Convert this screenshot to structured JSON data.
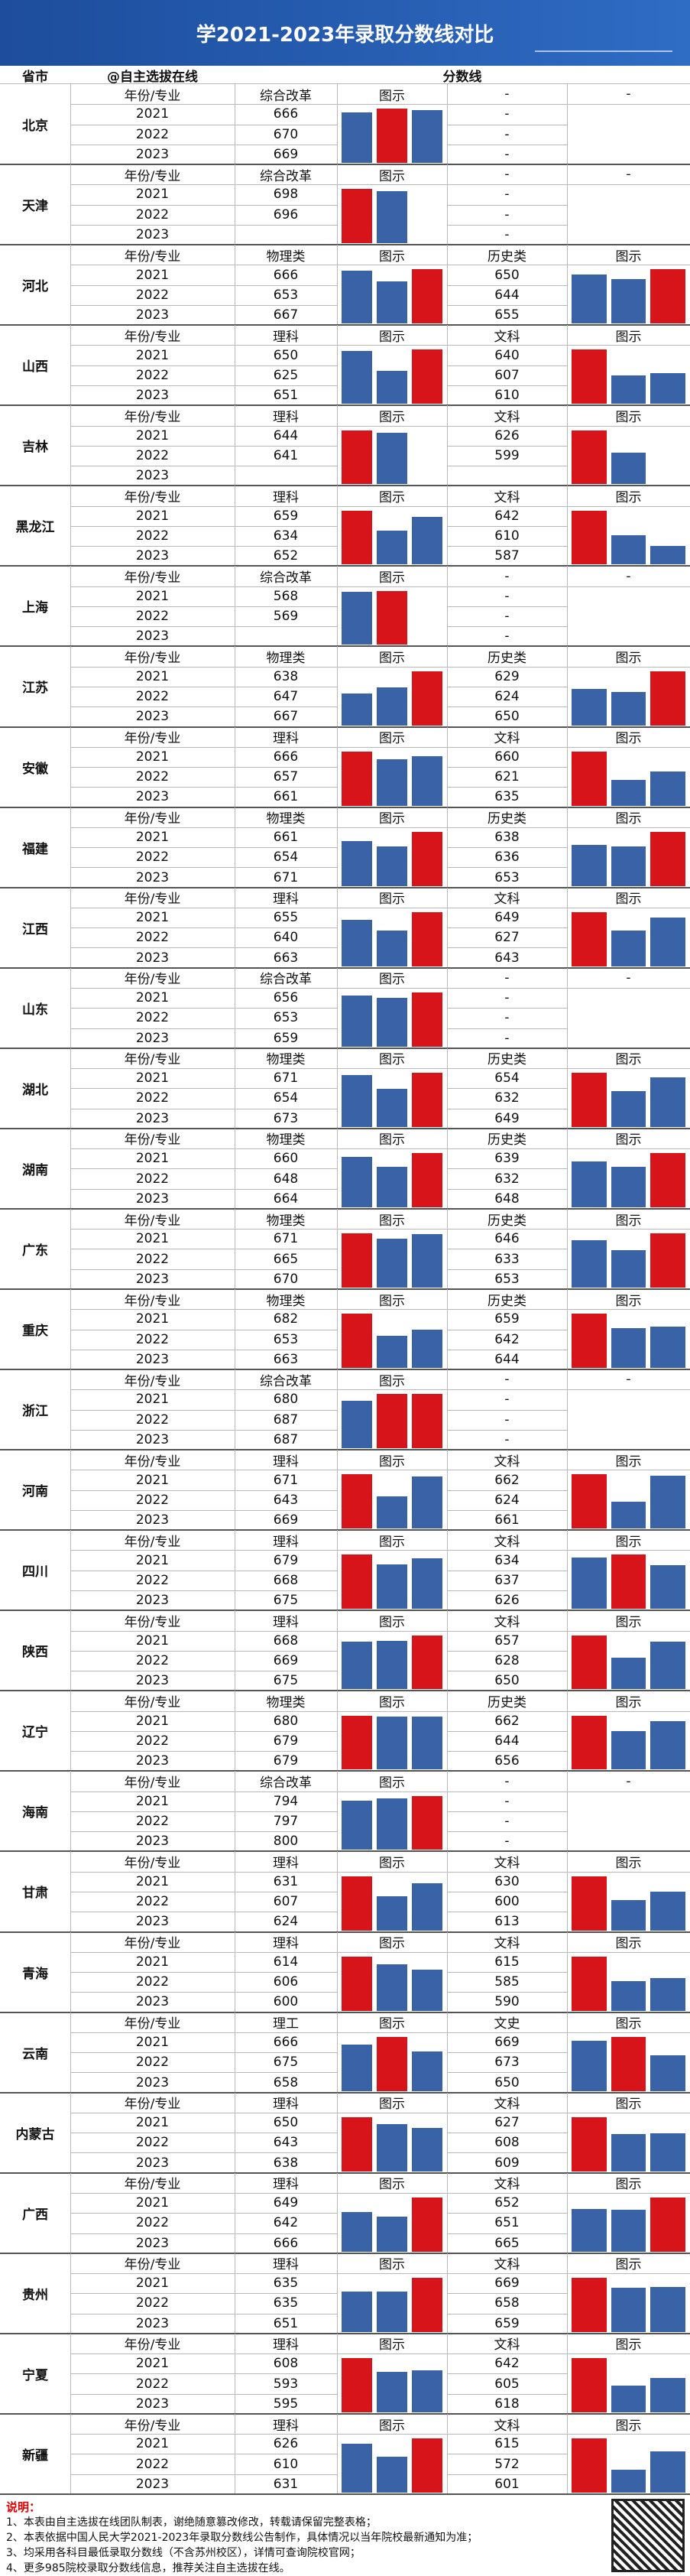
{
  "header": {
    "title": "学2021-2023年录取分数线对比",
    "col_province": "省市",
    "col_source": "@自主选拔在线",
    "col_scores": "分数线"
  },
  "year_header": "年份/专业",
  "years": [
    "2021",
    "2022",
    "2023"
  ],
  "bar_colors": {
    "normal": "#3a62a6",
    "highlight": "#d7141a"
  },
  "provinces": [
    {
      "name": "北京",
      "groups": [
        {
          "subject": "综合改革",
          "chart_label": "图示",
          "scores": [
            666,
            670,
            669
          ]
        },
        {
          "subject": "-",
          "chart_label": "-",
          "scores": [
            "-",
            "-",
            "-"
          ]
        }
      ]
    },
    {
      "name": "天津",
      "groups": [
        {
          "subject": "综合改革",
          "chart_label": "图示",
          "scores": [
            698,
            696,
            null
          ]
        },
        {
          "subject": "-",
          "chart_label": "-",
          "scores": [
            "-",
            "-",
            "-"
          ]
        }
      ]
    },
    {
      "name": "河北",
      "groups": [
        {
          "subject": "物理类",
          "chart_label": "图示",
          "scores": [
            666,
            653,
            667
          ]
        },
        {
          "subject": "历史类",
          "chart_label": "图示",
          "scores": [
            650,
            644,
            655
          ]
        }
      ]
    },
    {
      "name": "山西",
      "groups": [
        {
          "subject": "理科",
          "chart_label": "图示",
          "scores": [
            650,
            625,
            651
          ]
        },
        {
          "subject": "文科",
          "chart_label": "图示",
          "scores": [
            640,
            607,
            610
          ]
        }
      ]
    },
    {
      "name": "吉林",
      "groups": [
        {
          "subject": "理科",
          "chart_label": "图示",
          "scores": [
            644,
            641,
            null
          ]
        },
        {
          "subject": "文科",
          "chart_label": "图示",
          "scores": [
            626,
            599,
            null
          ]
        }
      ]
    },
    {
      "name": "黑龙江",
      "groups": [
        {
          "subject": "理科",
          "chart_label": "图示",
          "scores": [
            659,
            634,
            652
          ]
        },
        {
          "subject": "文科",
          "chart_label": "图示",
          "scores": [
            642,
            610,
            587
          ]
        }
      ]
    },
    {
      "name": "上海",
      "groups": [
        {
          "subject": "综合改革",
          "chart_label": "图示",
          "scores": [
            568,
            569,
            null
          ]
        },
        {
          "subject": "-",
          "chart_label": "-",
          "scores": [
            "-",
            "-",
            "-"
          ]
        }
      ]
    },
    {
      "name": "江苏",
      "groups": [
        {
          "subject": "物理类",
          "chart_label": "图示",
          "scores": [
            638,
            647,
            667
          ]
        },
        {
          "subject": "历史类",
          "chart_label": "图示",
          "scores": [
            629,
            624,
            650
          ]
        }
      ]
    },
    {
      "name": "安徽",
      "groups": [
        {
          "subject": "理科",
          "chart_label": "图示",
          "scores": [
            666,
            657,
            661
          ]
        },
        {
          "subject": "文科",
          "chart_label": "图示",
          "scores": [
            660,
            621,
            635
          ]
        }
      ]
    },
    {
      "name": "福建",
      "groups": [
        {
          "subject": "物理类",
          "chart_label": "图示",
          "scores": [
            661,
            654,
            671
          ]
        },
        {
          "subject": "历史类",
          "chart_label": "图示",
          "scores": [
            638,
            636,
            653
          ]
        }
      ]
    },
    {
      "name": "江西",
      "groups": [
        {
          "subject": "理科",
          "chart_label": "图示",
          "scores": [
            655,
            640,
            663
          ]
        },
        {
          "subject": "文科",
          "chart_label": "图示",
          "scores": [
            649,
            627,
            643
          ]
        }
      ]
    },
    {
      "name": "山东",
      "groups": [
        {
          "subject": "综合改革",
          "chart_label": "图示",
          "scores": [
            656,
            653,
            659
          ]
        },
        {
          "subject": "-",
          "chart_label": "-",
          "scores": [
            "-",
            "-",
            "-"
          ]
        }
      ]
    },
    {
      "name": "湖北",
      "groups": [
        {
          "subject": "物理类",
          "chart_label": "图示",
          "scores": [
            671,
            654,
            673
          ]
        },
        {
          "subject": "历史类",
          "chart_label": "图示",
          "scores": [
            654,
            632,
            649
          ]
        }
      ]
    },
    {
      "name": "湖南",
      "groups": [
        {
          "subject": "物理类",
          "chart_label": "图示",
          "scores": [
            660,
            648,
            664
          ]
        },
        {
          "subject": "历史类",
          "chart_label": "图示",
          "scores": [
            639,
            632,
            648
          ]
        }
      ]
    },
    {
      "name": "广东",
      "groups": [
        {
          "subject": "物理类",
          "chart_label": "图示",
          "scores": [
            671,
            665,
            670
          ]
        },
        {
          "subject": "历史类",
          "chart_label": "图示",
          "scores": [
            646,
            633,
            653
          ]
        }
      ]
    },
    {
      "name": "重庆",
      "groups": [
        {
          "subject": "物理类",
          "chart_label": "图示",
          "scores": [
            682,
            653,
            663
          ]
        },
        {
          "subject": "历史类",
          "chart_label": "图示",
          "scores": [
            659,
            642,
            644
          ]
        }
      ]
    },
    {
      "name": "浙江",
      "groups": [
        {
          "subject": "综合改革",
          "chart_label": "图示",
          "scores": [
            680,
            687,
            687
          ]
        },
        {
          "subject": "-",
          "chart_label": "-",
          "scores": [
            "-",
            "-",
            "-"
          ]
        }
      ]
    },
    {
      "name": "河南",
      "groups": [
        {
          "subject": "理科",
          "chart_label": "图示",
          "scores": [
            671,
            643,
            669
          ]
        },
        {
          "subject": "文科",
          "chart_label": "图示",
          "scores": [
            662,
            624,
            661
          ]
        }
      ]
    },
    {
      "name": "四川",
      "groups": [
        {
          "subject": "理科",
          "chart_label": "图示",
          "scores": [
            679,
            668,
            675
          ]
        },
        {
          "subject": "文科",
          "chart_label": "图示",
          "scores": [
            634,
            637,
            626
          ]
        }
      ]
    },
    {
      "name": "陕西",
      "groups": [
        {
          "subject": "理科",
          "chart_label": "图示",
          "scores": [
            668,
            669,
            675
          ]
        },
        {
          "subject": "文科",
          "chart_label": "图示",
          "scores": [
            657,
            628,
            650
          ]
        }
      ]
    },
    {
      "name": "辽宁",
      "groups": [
        {
          "subject": "物理类",
          "chart_label": "图示",
          "scores": [
            680,
            679,
            679
          ]
        },
        {
          "subject": "历史类",
          "chart_label": "图示",
          "scores": [
            662,
            644,
            656
          ]
        }
      ]
    },
    {
      "name": "海南",
      "groups": [
        {
          "subject": "综合改革",
          "chart_label": "图示",
          "scores": [
            794,
            797,
            800
          ]
        },
        {
          "subject": "-",
          "chart_label": "-",
          "scores": [
            "-",
            "-",
            "-"
          ]
        }
      ]
    },
    {
      "name": "甘肃",
      "groups": [
        {
          "subject": "理科",
          "chart_label": "图示",
          "scores": [
            631,
            607,
            624
          ]
        },
        {
          "subject": "文科",
          "chart_label": "图示",
          "scores": [
            630,
            600,
            613
          ]
        }
      ]
    },
    {
      "name": "青海",
      "groups": [
        {
          "subject": "理科",
          "chart_label": "图示",
          "scores": [
            614,
            606,
            600
          ]
        },
        {
          "subject": "文科",
          "chart_label": "图示",
          "scores": [
            615,
            585,
            590
          ]
        }
      ]
    },
    {
      "name": "云南",
      "groups": [
        {
          "subject": "理工",
          "chart_label": "图示",
          "scores": [
            666,
            675,
            658
          ]
        },
        {
          "subject": "文史",
          "chart_label": "图示",
          "scores": [
            669,
            673,
            650
          ]
        }
      ]
    },
    {
      "name": "内蒙古",
      "groups": [
        {
          "subject": "理科",
          "chart_label": "图示",
          "scores": [
            650,
            643,
            638
          ]
        },
        {
          "subject": "文科",
          "chart_label": "图示",
          "scores": [
            627,
            608,
            609
          ]
        }
      ]
    },
    {
      "name": "广西",
      "groups": [
        {
          "subject": "理科",
          "chart_label": "图示",
          "scores": [
            649,
            642,
            666
          ]
        },
        {
          "subject": "文科",
          "chart_label": "图示",
          "scores": [
            652,
            651,
            665
          ]
        }
      ]
    },
    {
      "name": "贵州",
      "groups": [
        {
          "subject": "理科",
          "chart_label": "图示",
          "scores": [
            635,
            635,
            651
          ]
        },
        {
          "subject": "文科",
          "chart_label": "图示",
          "scores": [
            669,
            658,
            659
          ]
        }
      ]
    },
    {
      "name": "宁夏",
      "groups": [
        {
          "subject": "理科",
          "chart_label": "图示",
          "scores": [
            608,
            593,
            595
          ]
        },
        {
          "subject": "文科",
          "chart_label": "图示",
          "scores": [
            642,
            605,
            618
          ]
        }
      ]
    },
    {
      "name": "新疆",
      "groups": [
        {
          "subject": "理科",
          "chart_label": "图示",
          "scores": [
            626,
            610,
            631
          ]
        },
        {
          "subject": "文科",
          "chart_label": "图示",
          "scores": [
            615,
            572,
            601
          ]
        }
      ]
    }
  ],
  "footer": {
    "title": "说明：",
    "notes": [
      "1、本表由自主选拔在线团队制表，谢绝随意篡改修改，转载请保留完整表格；",
      "2、本表依据中国人民大学2021-2023年录取分数线公告制作，具体情况以当年院校最新通知为准；",
      "3、均采用各科目最低录取分数线（不含苏州校区），详情可查询院校官网；",
      "4、更多985院校录取分数线信息，推荐关注自主选拔在线。"
    ]
  }
}
